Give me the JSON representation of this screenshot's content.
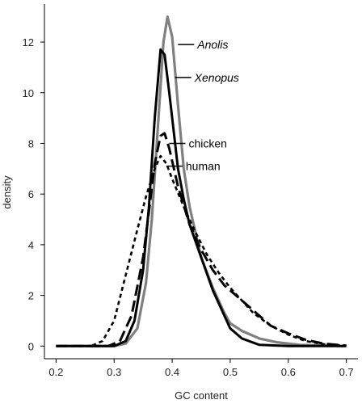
{
  "chart_data": {
    "type": "line",
    "title": "",
    "xlabel": "GC content",
    "ylabel": "density",
    "xlim": [
      0.18,
      0.72
    ],
    "ylim": [
      -0.5,
      13.5
    ],
    "xticks": [
      "0.2",
      "0.3",
      "0.4",
      "0.5",
      "0.6",
      "0.7"
    ],
    "yticks": [
      "0",
      "2",
      "4",
      "6",
      "8",
      "10",
      "12"
    ],
    "grid": false,
    "series": [
      {
        "name": "Anolis",
        "italic": true,
        "color": "#808080",
        "style": "solid",
        "points": [
          [
            0.2,
            0
          ],
          [
            0.3,
            0
          ],
          [
            0.32,
            0.1
          ],
          [
            0.34,
            0.7
          ],
          [
            0.355,
            2.5
          ],
          [
            0.365,
            5.0
          ],
          [
            0.375,
            8.5
          ],
          [
            0.385,
            12.0
          ],
          [
            0.392,
            13.0
          ],
          [
            0.4,
            12.2
          ],
          [
            0.41,
            9.5
          ],
          [
            0.42,
            7.0
          ],
          [
            0.43,
            5.5
          ],
          [
            0.44,
            4.5
          ],
          [
            0.45,
            3.5
          ],
          [
            0.47,
            2.3
          ],
          [
            0.49,
            1.3
          ],
          [
            0.5,
            0.9
          ],
          [
            0.52,
            0.6
          ],
          [
            0.55,
            0.3
          ],
          [
            0.58,
            0.15
          ],
          [
            0.62,
            0.05
          ],
          [
            0.66,
            0.02
          ],
          [
            0.7,
            0
          ]
        ]
      },
      {
        "name": "Xenopus",
        "italic": true,
        "color": "#000000",
        "style": "solid",
        "points": [
          [
            0.2,
            0
          ],
          [
            0.3,
            0
          ],
          [
            0.32,
            0.2
          ],
          [
            0.335,
            1.0
          ],
          [
            0.35,
            3.0
          ],
          [
            0.36,
            5.5
          ],
          [
            0.37,
            9.0
          ],
          [
            0.38,
            11.7
          ],
          [
            0.387,
            11.5
          ],
          [
            0.395,
            10.0
          ],
          [
            0.41,
            7.0
          ],
          [
            0.42,
            5.8
          ],
          [
            0.43,
            4.8
          ],
          [
            0.45,
            3.5
          ],
          [
            0.47,
            2.2
          ],
          [
            0.49,
            1.2
          ],
          [
            0.5,
            0.7
          ],
          [
            0.52,
            0.3
          ],
          [
            0.55,
            0.05
          ],
          [
            0.6,
            0
          ],
          [
            0.7,
            0
          ]
        ]
      },
      {
        "name": "chicken",
        "italic": false,
        "color": "#000000",
        "style": "longdash",
        "points": [
          [
            0.2,
            0
          ],
          [
            0.29,
            0
          ],
          [
            0.31,
            0.2
          ],
          [
            0.33,
            1.2
          ],
          [
            0.35,
            3.5
          ],
          [
            0.36,
            5.3
          ],
          [
            0.37,
            7.2
          ],
          [
            0.38,
            8.3
          ],
          [
            0.387,
            8.4
          ],
          [
            0.395,
            7.8
          ],
          [
            0.41,
            6.3
          ],
          [
            0.43,
            4.8
          ],
          [
            0.45,
            3.8
          ],
          [
            0.47,
            3.0
          ],
          [
            0.49,
            2.4
          ],
          [
            0.51,
            2.0
          ],
          [
            0.53,
            1.6
          ],
          [
            0.55,
            1.2
          ],
          [
            0.57,
            0.8
          ],
          [
            0.6,
            0.5
          ],
          [
            0.63,
            0.25
          ],
          [
            0.66,
            0.1
          ],
          [
            0.7,
            0.02
          ]
        ]
      },
      {
        "name": "human",
        "italic": false,
        "color": "#000000",
        "style": "shortdash",
        "points": [
          [
            0.2,
            0
          ],
          [
            0.26,
            0
          ],
          [
            0.28,
            0.2
          ],
          [
            0.3,
            1.0
          ],
          [
            0.32,
            2.8
          ],
          [
            0.34,
            4.6
          ],
          [
            0.355,
            5.9
          ],
          [
            0.37,
            7.0
          ],
          [
            0.38,
            7.5
          ],
          [
            0.39,
            7.2
          ],
          [
            0.4,
            6.6
          ],
          [
            0.42,
            5.5
          ],
          [
            0.44,
            4.5
          ],
          [
            0.46,
            3.6
          ],
          [
            0.48,
            2.9
          ],
          [
            0.5,
            2.3
          ],
          [
            0.52,
            1.8
          ],
          [
            0.54,
            1.3
          ],
          [
            0.57,
            0.8
          ],
          [
            0.6,
            0.45
          ],
          [
            0.63,
            0.2
          ],
          [
            0.66,
            0.08
          ],
          [
            0.7,
            0.02
          ]
        ]
      }
    ],
    "annotations": [
      {
        "series": "Anolis",
        "from": [
          0.41,
          11.9
        ],
        "text": "Anolis"
      },
      {
        "series": "Xenopus",
        "from": [
          0.405,
          10.6
        ],
        "text": "Xenopus"
      },
      {
        "series": "chicken",
        "from": [
          0.395,
          8.0
        ],
        "text": "chicken"
      },
      {
        "series": "human",
        "from": [
          0.39,
          7.1
        ],
        "text": "human"
      }
    ]
  }
}
